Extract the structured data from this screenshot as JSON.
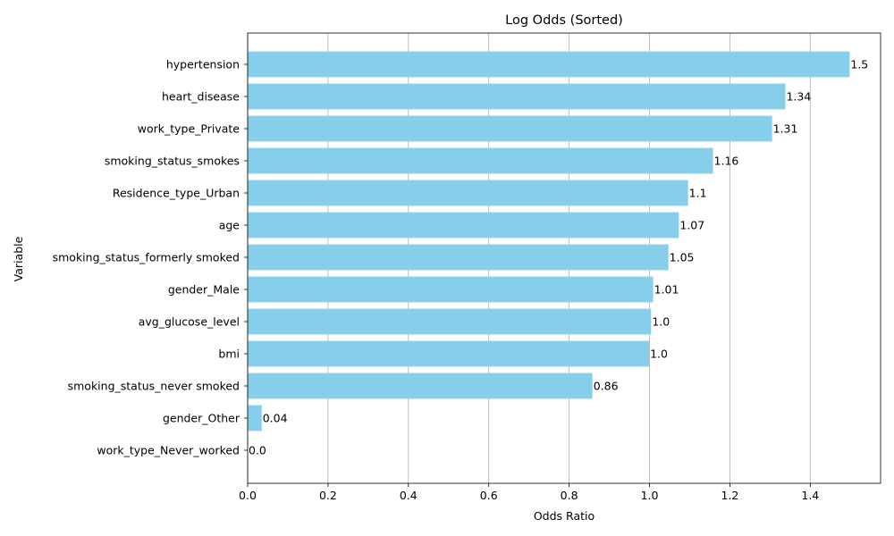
{
  "chart_data": {
    "type": "bar",
    "orientation": "horizontal",
    "title": "Log Odds (Sorted)",
    "xlabel": "Odds Ratio",
    "ylabel": "Variable",
    "xlim": [
      0,
      1.575
    ],
    "xticks": [
      "0.0",
      "0.2",
      "0.4",
      "0.6",
      "0.8",
      "1.0",
      "1.2",
      "1.4"
    ],
    "grid": "vertical",
    "bar_color": "#87ceeb",
    "categories": [
      "hypertension",
      "heart_disease",
      "work_type_Private",
      "smoking_status_smokes",
      "Residence_type_Urban",
      "age",
      "smoking_status_formerly smoked",
      "gender_Male",
      "avg_glucose_level",
      "bmi",
      "smoking_status_never smoked",
      "gender_Other",
      "work_type_Never_worked"
    ],
    "values": [
      1.498,
      1.338,
      1.305,
      1.158,
      1.096,
      1.073,
      1.047,
      1.009,
      1.004,
      0.999,
      0.858,
      0.035,
      0.0
    ],
    "data_labels": [
      "1.5",
      "1.34",
      "1.31",
      "1.16",
      "1.1",
      "1.07",
      "1.05",
      "1.01",
      "1.0",
      "1.0",
      "0.86",
      "0.04",
      "0.0"
    ]
  }
}
